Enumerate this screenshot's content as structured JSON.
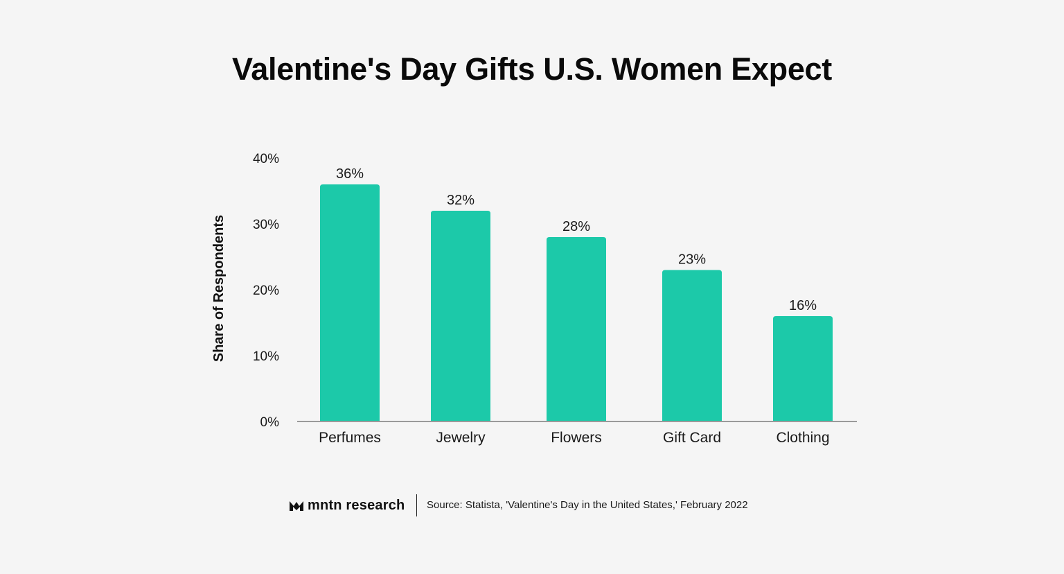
{
  "title": "Valentine's Day Gifts U.S. Women Expect",
  "footer": {
    "brand": "mntn research",
    "brand_logo_icon": "mntn-logo-icon",
    "source": "Source: Statista, 'Valentine's Day in the United States,' February 2022"
  },
  "chart_data": {
    "type": "bar",
    "title": "Valentine's Day Gifts U.S. Women Expect",
    "xlabel": "",
    "ylabel": "Share of Respondents",
    "categories": [
      "Perfumes",
      "Jewelry",
      "Flowers",
      "Gift Card",
      "Clothing"
    ],
    "values": [
      36,
      32,
      28,
      23,
      16
    ],
    "value_labels": [
      "36%",
      "32%",
      "28%",
      "23%",
      "16%"
    ],
    "ylim": [
      0,
      40
    ],
    "yticks": [
      0,
      10,
      20,
      30,
      40
    ],
    "ytick_labels": [
      "0%",
      "10%",
      "20%",
      "30%",
      "40%"
    ],
    "bar_color": "#1cc9a9",
    "grid": false,
    "legend": "none"
  }
}
